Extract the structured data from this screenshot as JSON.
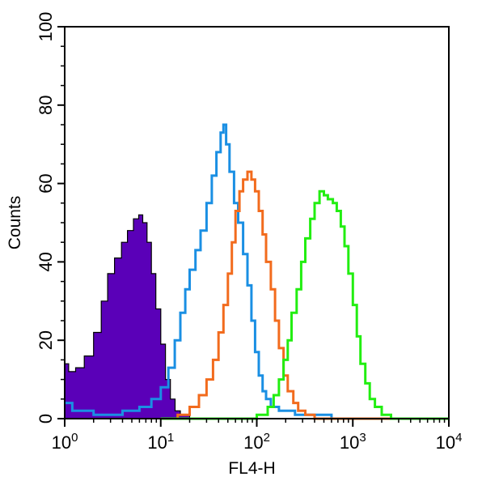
{
  "chart_data": {
    "type": "histogram",
    "xlabel": "FL4-H",
    "ylabel": "Counts",
    "x_scale": "log",
    "xlim": [
      1,
      10000
    ],
    "ylim": [
      0,
      100
    ],
    "x_ticks": [
      {
        "value": 1,
        "base": "10",
        "exp": "0"
      },
      {
        "value": 10,
        "base": "10",
        "exp": "1"
      },
      {
        "value": 100,
        "base": "10",
        "exp": "2"
      },
      {
        "value": 1000,
        "base": "10",
        "exp": "3"
      },
      {
        "value": 10000,
        "base": "10",
        "exp": "4"
      }
    ],
    "y_ticks": [
      "0",
      "20",
      "40",
      "60",
      "80",
      "100"
    ],
    "grid": false,
    "legend": "none",
    "series": [
      {
        "color": "#5a00b8",
        "style": "filled",
        "points": [
          [
            1.0,
            14
          ],
          [
            1.1,
            12
          ],
          [
            1.3,
            13
          ],
          [
            1.6,
            16
          ],
          [
            2.0,
            22
          ],
          [
            2.4,
            30
          ],
          [
            2.8,
            37
          ],
          [
            3.3,
            41
          ],
          [
            3.9,
            45
          ],
          [
            4.5,
            48
          ],
          [
            5.2,
            51
          ],
          [
            5.9,
            52
          ],
          [
            6.5,
            50
          ],
          [
            7.2,
            45
          ],
          [
            8.0,
            37
          ],
          [
            8.9,
            28
          ],
          [
            10.0,
            19
          ],
          [
            11.2,
            10
          ],
          [
            12.6,
            5
          ],
          [
            14.1,
            2
          ],
          [
            16.0,
            1
          ],
          [
            20.0,
            0
          ],
          [
            10000,
            0
          ]
        ]
      },
      {
        "color": "#1a8fe3",
        "style": "line",
        "points": [
          [
            1.0,
            4
          ],
          [
            1.2,
            2
          ],
          [
            2.0,
            1
          ],
          [
            4.0,
            2
          ],
          [
            6.0,
            3
          ],
          [
            8.0,
            5
          ],
          [
            10.0,
            8
          ],
          [
            12.0,
            13
          ],
          [
            14.0,
            20
          ],
          [
            16.0,
            27
          ],
          [
            18.0,
            33
          ],
          [
            20.0,
            38
          ],
          [
            23.0,
            43
          ],
          [
            26.0,
            48
          ],
          [
            30.0,
            55
          ],
          [
            34.0,
            62
          ],
          [
            38.0,
            68
          ],
          [
            42.0,
            73
          ],
          [
            45.0,
            75
          ],
          [
            48.0,
            70
          ],
          [
            52.0,
            63
          ],
          [
            58.0,
            55
          ],
          [
            64.0,
            50
          ],
          [
            72.0,
            42
          ],
          [
            80.0,
            34
          ],
          [
            88.0,
            25
          ],
          [
            96.0,
            17
          ],
          [
            105.0,
            11
          ],
          [
            115.0,
            7
          ],
          [
            125.0,
            5
          ],
          [
            140.0,
            3
          ],
          [
            170.0,
            2
          ],
          [
            250.0,
            1
          ],
          [
            400.0,
            1
          ],
          [
            600.0,
            0
          ],
          [
            10000,
            0
          ]
        ]
      },
      {
        "color": "#f26b1d",
        "style": "line",
        "points": [
          [
            10.0,
            0
          ],
          [
            15.0,
            1
          ],
          [
            20.0,
            3
          ],
          [
            25.0,
            6
          ],
          [
            30.0,
            10
          ],
          [
            35.0,
            15
          ],
          [
            40.0,
            22
          ],
          [
            45.0,
            29
          ],
          [
            50.0,
            37
          ],
          [
            55.0,
            45
          ],
          [
            60.0,
            53
          ],
          [
            66.0,
            58
          ],
          [
            72.0,
            61
          ],
          [
            80.0,
            63
          ],
          [
            88.0,
            61
          ],
          [
            96.0,
            58
          ],
          [
            105.0,
            53
          ],
          [
            115.0,
            47
          ],
          [
            125.0,
            40
          ],
          [
            140.0,
            33
          ],
          [
            155.0,
            25
          ],
          [
            170.0,
            18
          ],
          [
            190.0,
            11
          ],
          [
            210.0,
            7
          ],
          [
            240.0,
            4
          ],
          [
            270.0,
            2
          ],
          [
            320.0,
            1
          ],
          [
            400.0,
            0
          ],
          [
            10000,
            0
          ]
        ]
      },
      {
        "color": "#22ee11",
        "style": "line",
        "points": [
          [
            10.0,
            0
          ],
          [
            60.0,
            0
          ],
          [
            100.0,
            1
          ],
          [
            130.0,
            3
          ],
          [
            150.0,
            6
          ],
          [
            170.0,
            10
          ],
          [
            190.0,
            15
          ],
          [
            210.0,
            20
          ],
          [
            230.0,
            27
          ],
          [
            260.0,
            33
          ],
          [
            290.0,
            40
          ],
          [
            320.0,
            46
          ],
          [
            360.0,
            51
          ],
          [
            400.0,
            55
          ],
          [
            450.0,
            58
          ],
          [
            500.0,
            57
          ],
          [
            550.0,
            56
          ],
          [
            620.0,
            55
          ],
          [
            680.0,
            53
          ],
          [
            750.0,
            49
          ],
          [
            820.0,
            44
          ],
          [
            900.0,
            37
          ],
          [
            1000.0,
            29
          ],
          [
            1100.0,
            21
          ],
          [
            1200.0,
            14
          ],
          [
            1350.0,
            9
          ],
          [
            1500.0,
            5
          ],
          [
            1700.0,
            3
          ],
          [
            2000.0,
            1
          ],
          [
            2500.0,
            0
          ],
          [
            10000,
            0
          ]
        ]
      }
    ]
  }
}
